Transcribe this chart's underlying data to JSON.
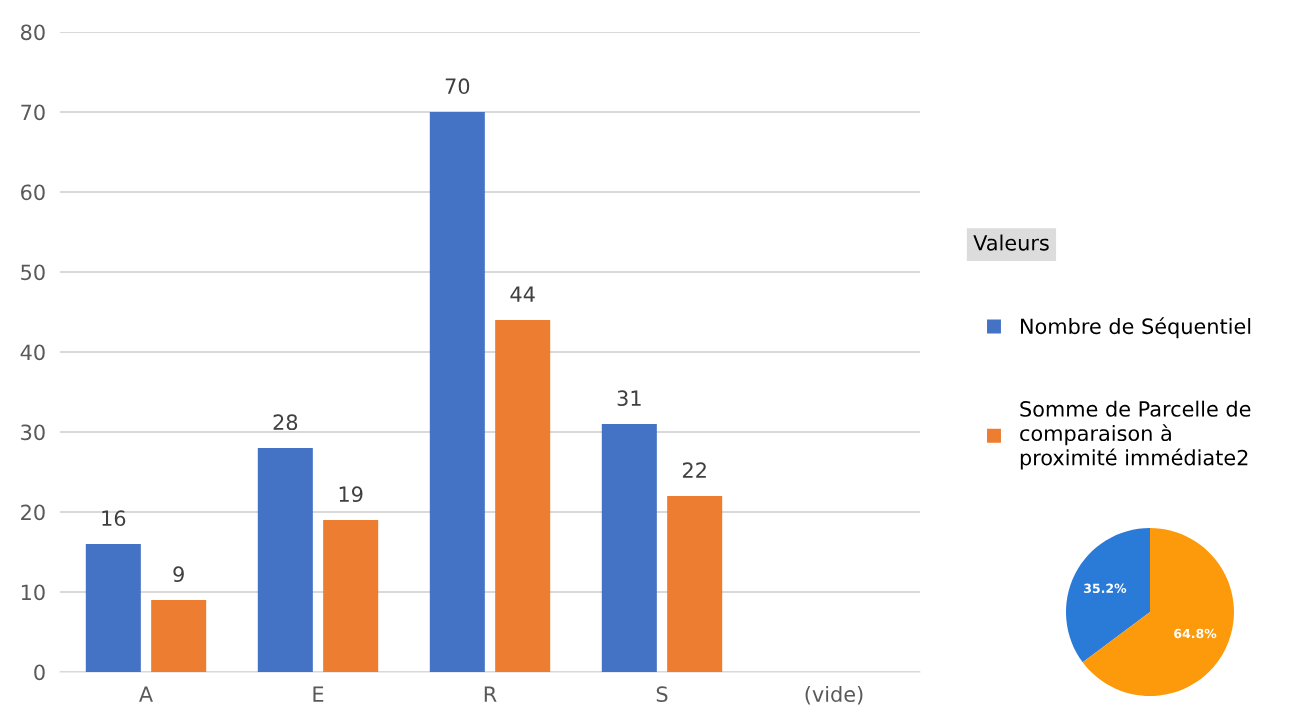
{
  "chart_data": [
    {
      "type": "bar",
      "categories": [
        "A",
        "E",
        "R",
        "S",
        "(vide)"
      ],
      "series": [
        {
          "name": "Nombre de Séquentiel",
          "color": "#4472c4",
          "values": [
            16,
            28,
            70,
            31,
            null
          ]
        },
        {
          "name": "Somme de Parcelle de comparaison à proximité immédiate2",
          "color": "#ed7d31",
          "values": [
            9,
            19,
            44,
            22,
            null
          ]
        }
      ],
      "ylim": [
        0,
        80
      ],
      "yticks": [
        0,
        10,
        20,
        30,
        40,
        50,
        60,
        70,
        80
      ],
      "grid": "y",
      "data_labels": true,
      "legend": "right",
      "legend_title": "Valeurs"
    },
    {
      "type": "pie",
      "categories": [
        null,
        null
      ],
      "values": [
        35.2,
        64.8
      ],
      "colors": [
        "#2a7ad8",
        "#fd9a0c"
      ],
      "value_labels": [
        "35.2%",
        "64.8%"
      ]
    }
  ]
}
